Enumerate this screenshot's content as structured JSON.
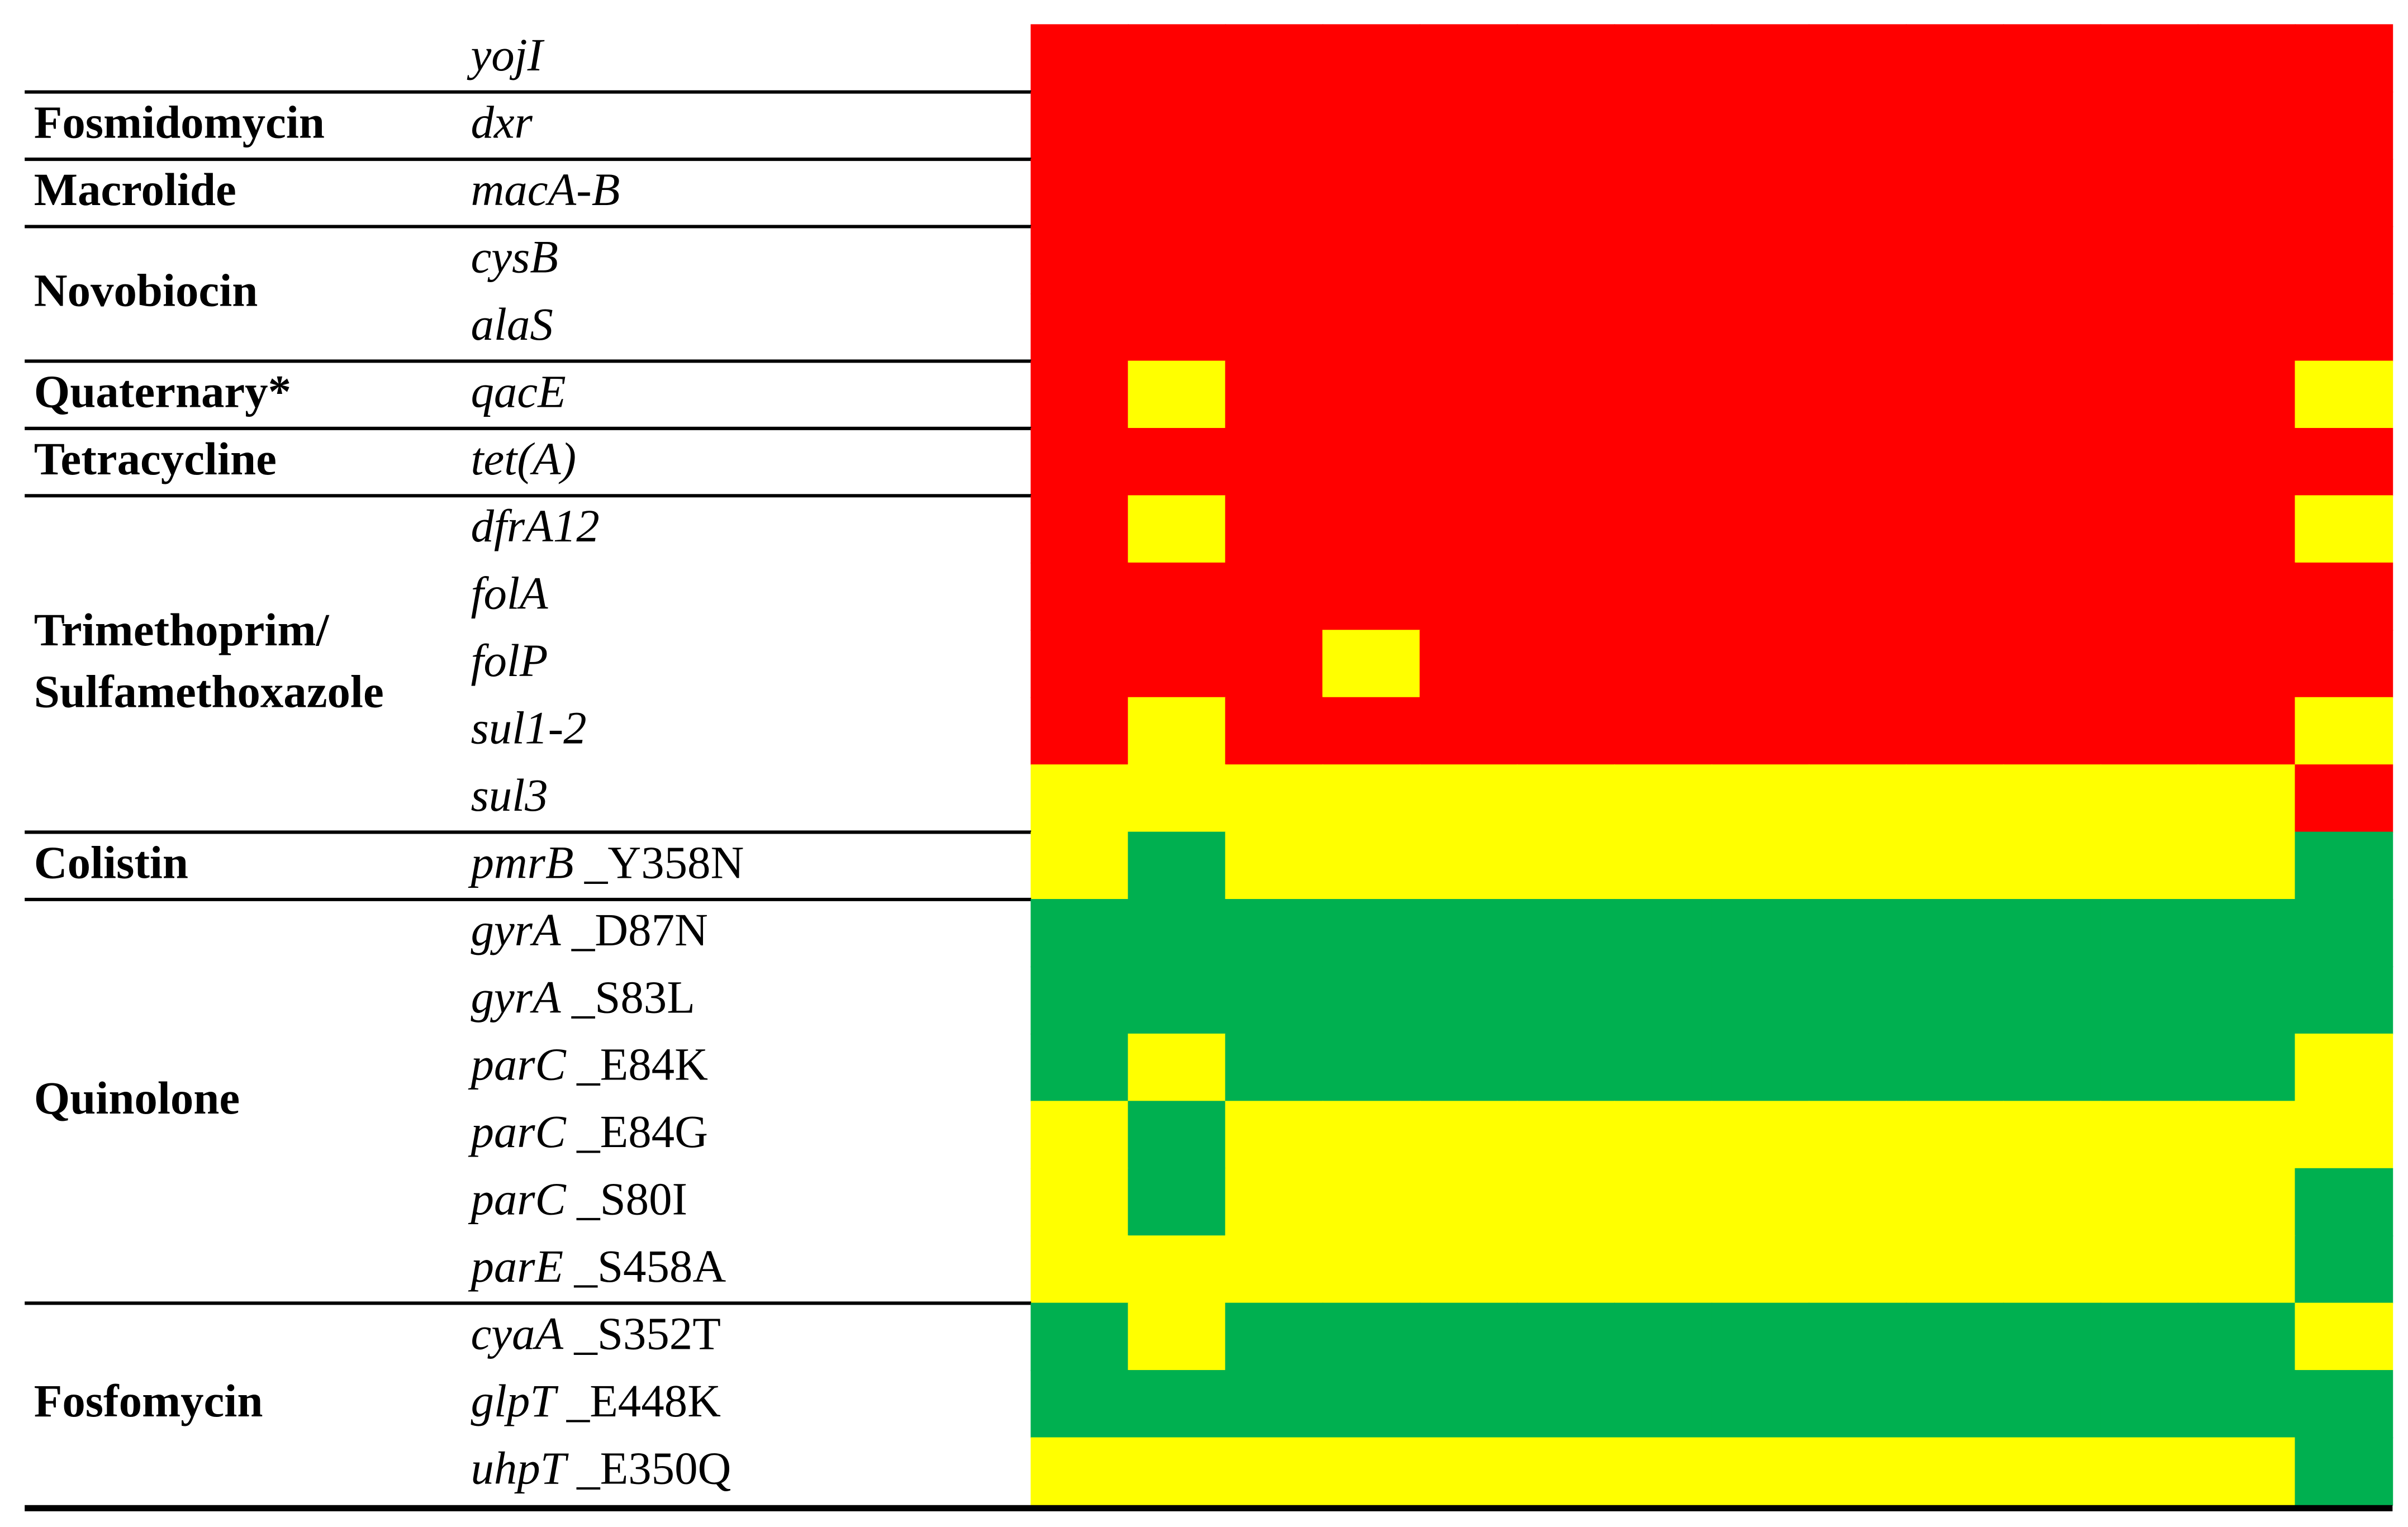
{
  "palette": {
    "R": "#ff0000",
    "Y": "#ffff00",
    "G": "#00b050"
  },
  "groups": [
    {
      "rows": [
        {
          "gene": "yojI",
          "cells": [
            "R",
            "R",
            "R",
            "R",
            "R",
            "R",
            "R",
            "R",
            "R",
            "R",
            "R",
            "R",
            "R",
            "R"
          ]
        }
      ]
    },
    {
      "class": [
        "Fosmidomycin"
      ],
      "rows": [
        {
          "gene": "dxr",
          "cells": [
            "R",
            "R",
            "R",
            "R",
            "R",
            "R",
            "R",
            "R",
            "R",
            "R",
            "R",
            "R",
            "R",
            "R"
          ]
        }
      ]
    },
    {
      "class": [
        "Macrolide"
      ],
      "rows": [
        {
          "gene": "macA-B",
          "cells": [
            "R",
            "R",
            "R",
            "R",
            "R",
            "R",
            "R",
            "R",
            "R",
            "R",
            "R",
            "R",
            "R",
            "R"
          ]
        }
      ]
    },
    {
      "class": [
        "Novobiocin"
      ],
      "rows": [
        {
          "gene": "cysB",
          "cells": [
            "R",
            "R",
            "R",
            "R",
            "R",
            "R",
            "R",
            "R",
            "R",
            "R",
            "R",
            "R",
            "R",
            "R"
          ]
        },
        {
          "gene": "alaS",
          "cells": [
            "R",
            "R",
            "R",
            "R",
            "R",
            "R",
            "R",
            "R",
            "R",
            "R",
            "R",
            "R",
            "R",
            "R"
          ]
        }
      ]
    },
    {
      "class": [
        "Quaternary*"
      ],
      "rows": [
        {
          "gene": "qacE",
          "cells": [
            "R",
            "Y",
            "R",
            "R",
            "R",
            "R",
            "R",
            "R",
            "R",
            "R",
            "R",
            "R",
            "R",
            "Y"
          ]
        }
      ]
    },
    {
      "class": [
        "Tetracycline"
      ],
      "rows": [
        {
          "gene": "tet(A)",
          "cells": [
            "R",
            "R",
            "R",
            "R",
            "R",
            "R",
            "R",
            "R",
            "R",
            "R",
            "R",
            "R",
            "R",
            "R"
          ]
        }
      ]
    },
    {
      "class": [
        "Trimethoprim/",
        "Sulfamethoxazole"
      ],
      "rows": [
        {
          "gene": "dfrA12",
          "cells": [
            "R",
            "Y",
            "R",
            "R",
            "R",
            "R",
            "R",
            "R",
            "R",
            "R",
            "R",
            "R",
            "R",
            "Y"
          ]
        },
        {
          "gene": "folA",
          "cells": [
            "R",
            "R",
            "R",
            "R",
            "R",
            "R",
            "R",
            "R",
            "R",
            "R",
            "R",
            "R",
            "R",
            "R"
          ]
        },
        {
          "gene": "folP",
          "cells": [
            "R",
            "R",
            "R",
            "Y",
            "R",
            "R",
            "R",
            "R",
            "R",
            "R",
            "R",
            "R",
            "R",
            "R"
          ]
        },
        {
          "gene": "sul1-2",
          "cells": [
            "R",
            "Y",
            "R",
            "R",
            "R",
            "R",
            "R",
            "R",
            "R",
            "R",
            "R",
            "R",
            "R",
            "Y"
          ]
        },
        {
          "gene": "sul3",
          "cells": [
            "Y",
            "Y",
            "Y",
            "Y",
            "Y",
            "Y",
            "Y",
            "Y",
            "Y",
            "Y",
            "Y",
            "Y",
            "Y",
            "R"
          ]
        }
      ]
    },
    {
      "class": [
        "Colistin"
      ],
      "rows": [
        {
          "gene": "pmrB",
          "mutation": "_Y358N",
          "cells": [
            "Y",
            "G",
            "Y",
            "Y",
            "Y",
            "Y",
            "Y",
            "Y",
            "Y",
            "Y",
            "Y",
            "Y",
            "Y",
            "G"
          ]
        }
      ]
    },
    {
      "class": [
        "Quinolone"
      ],
      "rows": [
        {
          "gene": "gyrA",
          "mutation": "_D87N",
          "cells": [
            "G",
            "G",
            "G",
            "G",
            "G",
            "G",
            "G",
            "G",
            "G",
            "G",
            "G",
            "G",
            "G",
            "G"
          ]
        },
        {
          "gene": "gyrA",
          "mutation": "_S83L",
          "cells": [
            "G",
            "G",
            "G",
            "G",
            "G",
            "G",
            "G",
            "G",
            "G",
            "G",
            "G",
            "G",
            "G",
            "G"
          ]
        },
        {
          "gene": "parC",
          "mutation": "_E84K",
          "cells": [
            "G",
            "Y",
            "G",
            "G",
            "G",
            "G",
            "G",
            "G",
            "G",
            "G",
            "G",
            "G",
            "G",
            "Y"
          ]
        },
        {
          "gene": "parC",
          "mutation": "_E84G",
          "cells": [
            "Y",
            "G",
            "Y",
            "Y",
            "Y",
            "Y",
            "Y",
            "Y",
            "Y",
            "Y",
            "Y",
            "Y",
            "Y",
            "Y"
          ]
        },
        {
          "gene": "parC",
          "mutation": "_S80I",
          "cells": [
            "Y",
            "G",
            "Y",
            "Y",
            "Y",
            "Y",
            "Y",
            "Y",
            "Y",
            "Y",
            "Y",
            "Y",
            "Y",
            "G"
          ]
        },
        {
          "gene": "parE",
          "mutation": "_S458A",
          "cells": [
            "Y",
            "Y",
            "Y",
            "Y",
            "Y",
            "Y",
            "Y",
            "Y",
            "Y",
            "Y",
            "Y",
            "Y",
            "Y",
            "G"
          ]
        }
      ]
    },
    {
      "class": [
        "Fosfomycin"
      ],
      "rows": [
        {
          "gene": "cyaA",
          "mutation": "_S352T",
          "cells": [
            "G",
            "Y",
            "G",
            "G",
            "G",
            "G",
            "G",
            "G",
            "G",
            "G",
            "G",
            "G",
            "G",
            "Y"
          ]
        },
        {
          "gene": "glpT",
          "mutation": "_E448K",
          "cells": [
            "G",
            "G",
            "G",
            "G",
            "G",
            "G",
            "G",
            "G",
            "G",
            "G",
            "G",
            "G",
            "G",
            "G"
          ]
        },
        {
          "gene": "uhpT",
          "mutation": "_E350Q",
          "cells": [
            "Y",
            "Y",
            "Y",
            "Y",
            "Y",
            "Y",
            "Y",
            "Y",
            "Y",
            "Y",
            "Y",
            "Y",
            "Y",
            "G"
          ]
        }
      ]
    }
  ]
}
